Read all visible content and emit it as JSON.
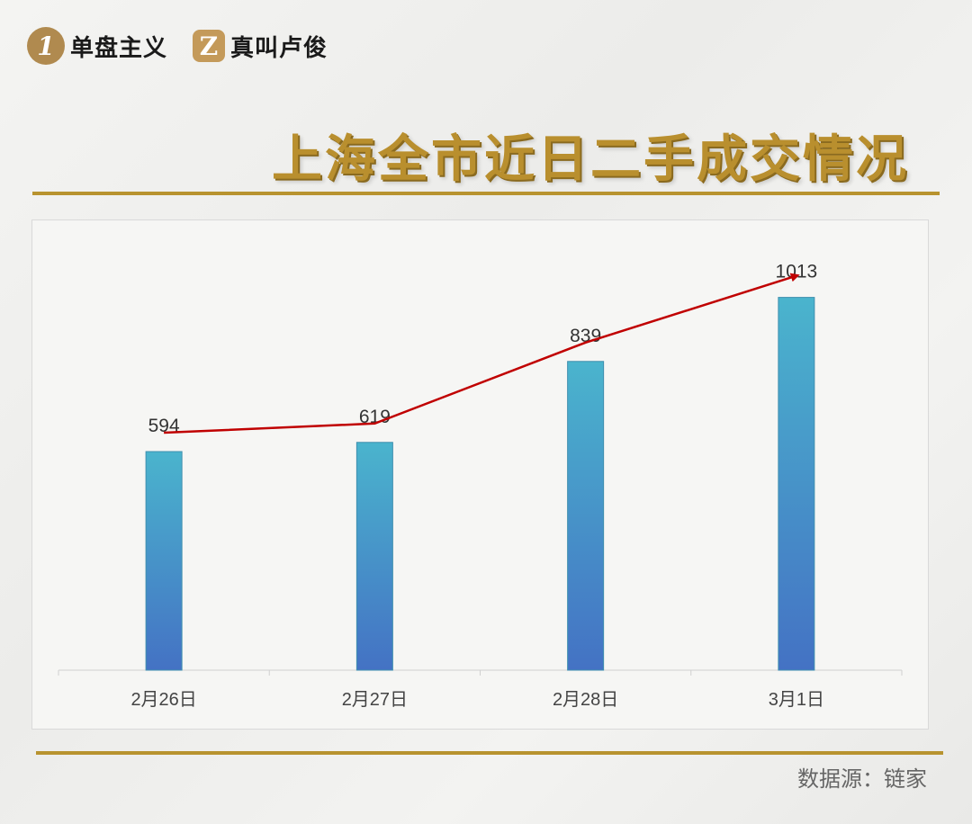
{
  "brand": {
    "items": [
      {
        "badge": "1",
        "label": "单盘主义"
      },
      {
        "badge": "Z",
        "label": "真叫卢俊"
      }
    ]
  },
  "title": "上海全市近日二手成交情况",
  "source": "数据源：链家",
  "colors": {
    "gold": "#b8932f",
    "bar_top": "#4ab4cd",
    "bar_bottom": "#4472c4",
    "trend_line": "#c00000"
  },
  "chart_data": {
    "type": "bar",
    "categories": [
      "2月26日",
      "2月27日",
      "2月28日",
      "3月1日"
    ],
    "values": [
      594,
      619,
      839,
      1013
    ],
    "data_labels": [
      "594",
      "619",
      "839",
      "1013"
    ],
    "title": "",
    "xlabel": "",
    "ylabel": "",
    "ylim": [
      0,
      1100
    ],
    "grid": false,
    "legend": "none",
    "overlay": "trend-arrow"
  }
}
